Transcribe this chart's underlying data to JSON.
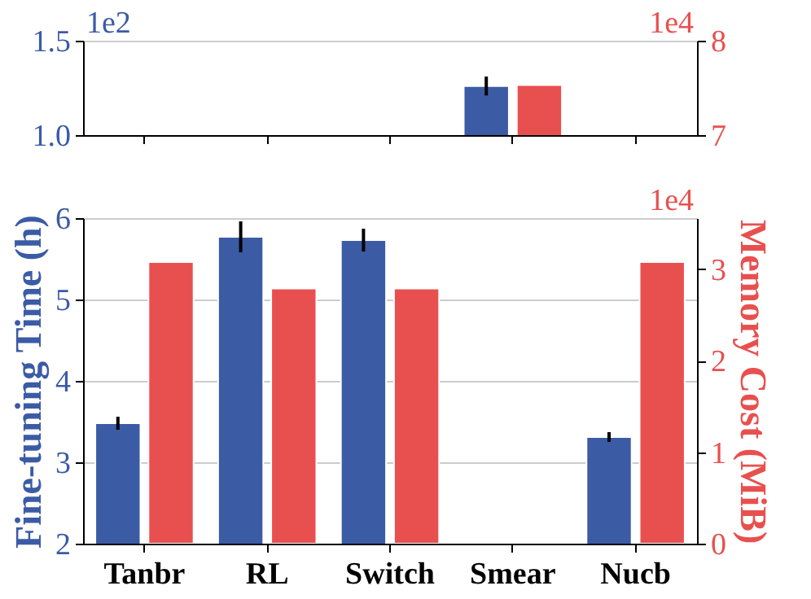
{
  "chart_data": [
    {
      "type": "bar",
      "categories": [
        null,
        null,
        null,
        null,
        null
      ],
      "tick_labels": "y",
      "grid": "y",
      "series": [
        {
          "color": "#3b5ba5",
          "values": [
            null,
            null,
            null,
            1.26,
            null
          ],
          "errors": [
            null,
            null,
            null,
            0.05,
            null
          ]
        },
        {
          "color": "#e8504f",
          "axis": "y2",
          "values": [
            null,
            null,
            null,
            7.53,
            null
          ]
        }
      ],
      "ylim": [
        1.0,
        1.5
      ],
      "yticks": [
        {
          "value": 1.0,
          "label": "1.0"
        },
        {
          "value": 1.5,
          "label": "1.5"
        }
      ],
      "y2lim": [
        7,
        8
      ],
      "y2ticks": [
        7,
        8
      ],
      "annotations": [
        "1e2",
        "1e4"
      ]
    },
    {
      "type": "bar",
      "categories": [
        "Tanbr",
        "RL",
        "Switch",
        "Smear",
        "Nucb"
      ],
      "grid": "y",
      "ylabel": "Fine-tuning Time (h)",
      "y2label": "Memory Cost (MiB)",
      "series": [
        {
          "color": "#3b5ba5",
          "values": [
            3.48,
            5.77,
            5.73,
            null,
            3.31
          ],
          "errors": [
            0.08,
            0.19,
            0.14,
            null,
            0.06
          ]
        },
        {
          "color": "#e8504f",
          "axis": "y2",
          "values": [
            3.08,
            2.79,
            2.79,
            null,
            3.08
          ]
        }
      ],
      "ylim": [
        2,
        6
      ],
      "yticks": [
        2,
        3,
        4,
        5,
        6
      ],
      "y2lim": [
        0,
        3.56
      ],
      "y2ticks": [
        0,
        1,
        2,
        3
      ],
      "annotations": [
        "1e4"
      ]
    }
  ]
}
